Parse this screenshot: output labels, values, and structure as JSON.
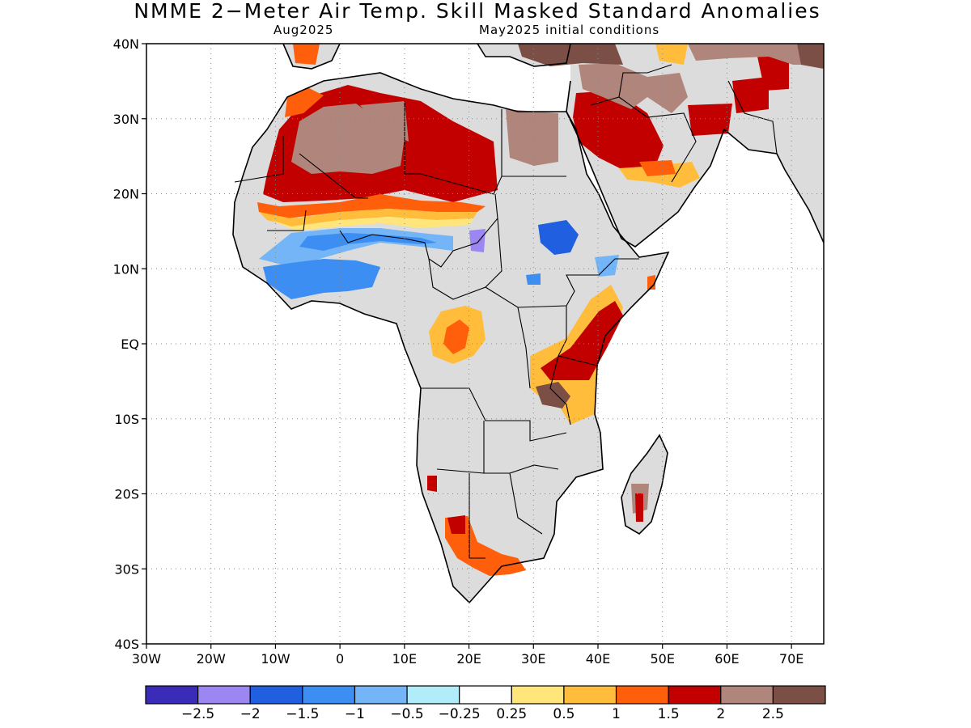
{
  "title": "NMME 2−Meter Air Temp. Skill Masked Standard Anomalies",
  "subtitle_left": "Aug2025",
  "subtitle_right": "May2025 initial conditions",
  "map": {
    "lon_range": [
      -30,
      75
    ],
    "lat_range": [
      -40,
      40
    ],
    "lat_ticks": [
      {
        "v": 40,
        "label": "40N"
      },
      {
        "v": 30,
        "label": "30N"
      },
      {
        "v": 20,
        "label": "20N"
      },
      {
        "v": 10,
        "label": "10N"
      },
      {
        "v": 0,
        "label": "EQ"
      },
      {
        "v": -10,
        "label": "10S"
      },
      {
        "v": -20,
        "label": "20S"
      },
      {
        "v": -30,
        "label": "30S"
      },
      {
        "v": -40,
        "label": "40S"
      }
    ],
    "lon_ticks": [
      {
        "v": -30,
        "label": "30W"
      },
      {
        "v": -20,
        "label": "20W"
      },
      {
        "v": -10,
        "label": "10W"
      },
      {
        "v": 0,
        "label": "0"
      },
      {
        "v": 10,
        "label": "10E"
      },
      {
        "v": 20,
        "label": "20E"
      },
      {
        "v": 30,
        "label": "30E"
      },
      {
        "v": 40,
        "label": "40E"
      },
      {
        "v": 50,
        "label": "50E"
      },
      {
        "v": 60,
        "label": "60E"
      },
      {
        "v": 70,
        "label": "70E"
      }
    ],
    "grid": true,
    "land_color": "#dcdcdc",
    "ocean_color": "#ffffff"
  },
  "colorbar": {
    "colors": [
      "#3b2bb9",
      "#9b86f2",
      "#1f5fe0",
      "#3c8ef2",
      "#74b5f7",
      "#b1ecf9",
      "#ffffff",
      "#ffe57a",
      "#ffbd3b",
      "#ff5e0a",
      "#c20000",
      "#b0857b",
      "#7b4f45"
    ],
    "labels": [
      "−2.5",
      "−2",
      "−1.5",
      "−1",
      "−0.5",
      "−0.25",
      "0.25",
      "0.5",
      "1",
      "1.5",
      "2",
      "2.5"
    ]
  }
}
